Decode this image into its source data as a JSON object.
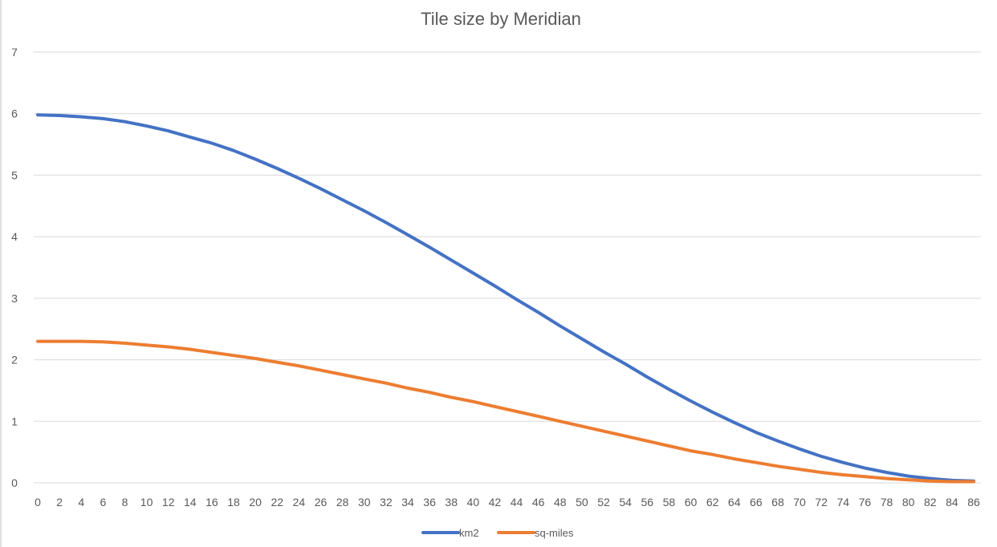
{
  "chart_data": {
    "type": "line",
    "title": "Tile size by Meridian",
    "xlabel": "",
    "ylabel": "",
    "x_ticks": [
      "0",
      "2",
      "4",
      "6",
      "8",
      "10",
      "12",
      "14",
      "16",
      "18",
      "20",
      "22",
      "24",
      "26",
      "28",
      "30",
      "32",
      "34",
      "36",
      "38",
      "40",
      "42",
      "44",
      "46",
      "48",
      "50",
      "52",
      "54",
      "56",
      "58",
      "60",
      "62",
      "64",
      "66",
      "68",
      "70",
      "72",
      "74",
      "76",
      "78",
      "80",
      "82",
      "84",
      "86"
    ],
    "x": [
      0,
      2,
      4,
      6,
      8,
      10,
      12,
      14,
      16,
      18,
      20,
      22,
      24,
      26,
      28,
      30,
      32,
      34,
      36,
      38,
      40,
      42,
      44,
      46,
      48,
      50,
      52,
      54,
      56,
      58,
      60,
      62,
      64,
      66,
      68,
      70,
      72,
      74,
      76,
      78,
      80,
      82,
      84,
      86
    ],
    "xlim": [
      0,
      86
    ],
    "ylim": [
      0,
      7
    ],
    "y_ticks": [
      "0",
      "1",
      "2",
      "3",
      "4",
      "5",
      "6",
      "7"
    ],
    "grid": true,
    "legend_position": "bottom",
    "series": [
      {
        "name": "km2",
        "color": "#4472c4",
        "values": [
          5.98,
          5.97,
          5.95,
          5.92,
          5.87,
          5.8,
          5.72,
          5.62,
          5.52,
          5.4,
          5.26,
          5.11,
          4.95,
          4.78,
          4.6,
          4.42,
          4.23,
          4.03,
          3.83,
          3.62,
          3.41,
          3.2,
          2.98,
          2.77,
          2.55,
          2.34,
          2.13,
          1.93,
          1.72,
          1.52,
          1.33,
          1.15,
          0.98,
          0.82,
          0.68,
          0.55,
          0.43,
          0.33,
          0.24,
          0.17,
          0.11,
          0.07,
          0.04,
          0.03
        ]
      },
      {
        "name": "sq-miles",
        "color": "#ed7d31",
        "values": [
          2.3,
          2.3,
          2.3,
          2.29,
          2.27,
          2.24,
          2.21,
          2.17,
          2.12,
          2.07,
          2.02,
          1.96,
          1.9,
          1.83,
          1.76,
          1.69,
          1.62,
          1.54,
          1.47,
          1.39,
          1.32,
          1.24,
          1.16,
          1.08,
          1.0,
          0.92,
          0.84,
          0.76,
          0.68,
          0.6,
          0.52,
          0.46,
          0.39,
          0.33,
          0.27,
          0.22,
          0.17,
          0.13,
          0.1,
          0.07,
          0.05,
          0.03,
          0.02,
          0.02
        ]
      }
    ]
  }
}
